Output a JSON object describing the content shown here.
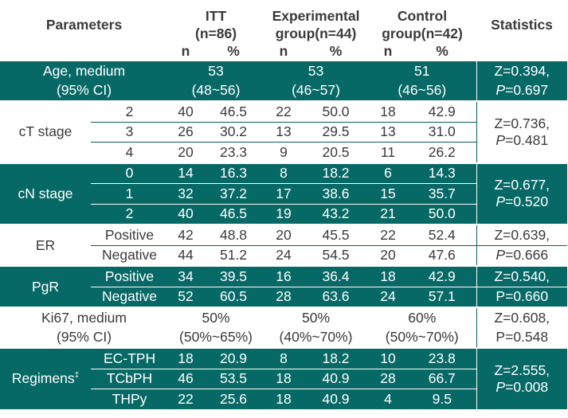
{
  "header": {
    "parameters": "Parameters",
    "itt": "ITT",
    "itt_n": "(n=86)",
    "exp": "Experimental",
    "exp_n": "group(n=44)",
    "ctrl": "Control",
    "ctrl_n": "group(n=42)",
    "statistics": "Statistics",
    "n": "n",
    "pct": "%"
  },
  "age": {
    "label1": "Age, medium",
    "label2": "(95% CI)",
    "itt1": "53",
    "itt2": "(48~56)",
    "exp1": "53",
    "exp2": "(46~57)",
    "ctrl1": "51",
    "ctrl2": "(46~56)",
    "z": "Z=0.394,",
    "p_label": "P",
    "p_value": "=0.697"
  },
  "ct": {
    "label": "cT stage",
    "rows": [
      {
        "sub": "2",
        "itt_n": "40",
        "itt_p": "46.5",
        "exp_n": "22",
        "exp_p": "50.0",
        "ctrl_n": "18",
        "ctrl_p": "42.9"
      },
      {
        "sub": "3",
        "itt_n": "26",
        "itt_p": "30.2",
        "exp_n": "13",
        "exp_p": "29.5",
        "ctrl_n": "13",
        "ctrl_p": "31.0"
      },
      {
        "sub": "4",
        "itt_n": "20",
        "itt_p": "23.3",
        "exp_n": "9",
        "exp_p": "20.5",
        "ctrl_n": "11",
        "ctrl_p": "26.2"
      }
    ],
    "z": "Z=0.736,",
    "p_label": "P",
    "p_value": "=0.481"
  },
  "cn": {
    "label": "cN stage",
    "rows": [
      {
        "sub": "0",
        "itt_n": "14",
        "itt_p": "16.3",
        "exp_n": "8",
        "exp_p": "18.2",
        "ctrl_n": "6",
        "ctrl_p": "14.3"
      },
      {
        "sub": "1",
        "itt_n": "32",
        "itt_p": "37.2",
        "exp_n": "17",
        "exp_p": "38.6",
        "ctrl_n": "15",
        "ctrl_p": "35.7"
      },
      {
        "sub": "2",
        "itt_n": "40",
        "itt_p": "46.5",
        "exp_n": "19",
        "exp_p": "43.2",
        "ctrl_n": "21",
        "ctrl_p": "50.0"
      }
    ],
    "z": "Z=0.677,",
    "p_label": "P",
    "p_value": "=0.520"
  },
  "er": {
    "label": "ER",
    "rows": [
      {
        "sub": "Positive",
        "itt_n": "42",
        "itt_p": "48.8",
        "exp_n": "20",
        "exp_p": "45.5",
        "ctrl_n": "22",
        "ctrl_p": "52.4"
      },
      {
        "sub": "Negative",
        "itt_n": "44",
        "itt_p": "51.2",
        "exp_n": "24",
        "exp_p": "54.5",
        "ctrl_n": "20",
        "ctrl_p": "47.6"
      }
    ],
    "z": "Z=0.639,",
    "p_label": "P",
    "p_value": "=0.666"
  },
  "pgr": {
    "label": "PgR",
    "rows": [
      {
        "sub": "Positive",
        "itt_n": "34",
        "itt_p": "39.5",
        "exp_n": "16",
        "exp_p": "36.4",
        "ctrl_n": "18",
        "ctrl_p": "42.9"
      },
      {
        "sub": "Negative",
        "itt_n": "52",
        "itt_p": "60.5",
        "exp_n": "28",
        "exp_p": "63.6",
        "ctrl_n": "24",
        "ctrl_p": "57.1"
      }
    ],
    "z": "Z=0.540,",
    "p_text": "P=0.660"
  },
  "ki67": {
    "label1": "Ki67, medium",
    "label2": "(95% CI)",
    "itt1": "50%",
    "itt2": "(50%~65%)",
    "exp1": "50%",
    "exp2": "(40%~70%)",
    "ctrl1": "60%",
    "ctrl2": "(50%~70%)",
    "z": "Z=0.608,",
    "p_text": "P=0.548"
  },
  "regimens": {
    "label": "Regimens",
    "sup": "‡",
    "rows": [
      {
        "sub": "EC-TPH",
        "itt_n": "18",
        "itt_p": "20.9",
        "exp_n": "8",
        "exp_p": "18.2",
        "ctrl_n": "10",
        "ctrl_p": "23.8"
      },
      {
        "sub": "TCbPH",
        "itt_n": "46",
        "itt_p": "53.5",
        "exp_n": "18",
        "exp_p": "40.9",
        "ctrl_n": "28",
        "ctrl_p": "66.7"
      },
      {
        "sub": "THPy",
        "itt_n": "22",
        "itt_p": "25.6",
        "exp_n": "18",
        "exp_p": "40.9",
        "ctrl_n": "4",
        "ctrl_p": "9.5"
      }
    ],
    "z": "Z=2.555,",
    "p_label": "P",
    "p_value": "=0.008"
  },
  "colors": {
    "teal": "#076966",
    "text": "#3a3a3a",
    "white": "#ffffff"
  }
}
